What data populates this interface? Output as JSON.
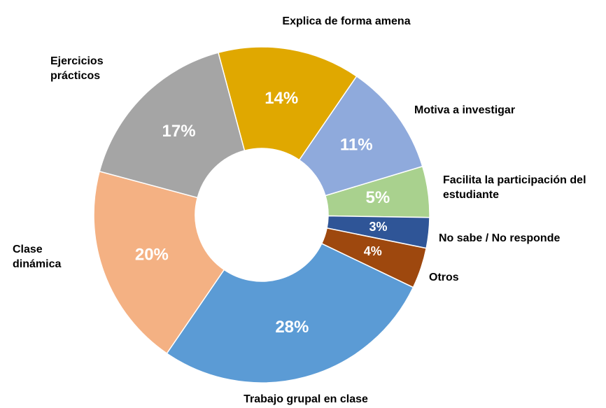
{
  "chart_data": {
    "type": "donut",
    "categories": [
      "Explica de forma amena",
      "Motiva a investigar",
      "Facilita la participación del estudiante",
      "No sabe / No responde",
      "Otros",
      "Trabajo grupal en clase",
      "Clase dinámica",
      "Ejercicios prácticos"
    ],
    "values": [
      14,
      11,
      5,
      3,
      4,
      28,
      20,
      17
    ],
    "value_labels": [
      "14%",
      "11%",
      "5%",
      "3%",
      "4%",
      "28%",
      "20%",
      "17%"
    ],
    "colors": [
      "#e0a800",
      "#8faadc",
      "#a9d18e",
      "#2f5597",
      "#9e480e",
      "#5b9bd5",
      "#f4b183",
      "#a5a5a5"
    ]
  }
}
